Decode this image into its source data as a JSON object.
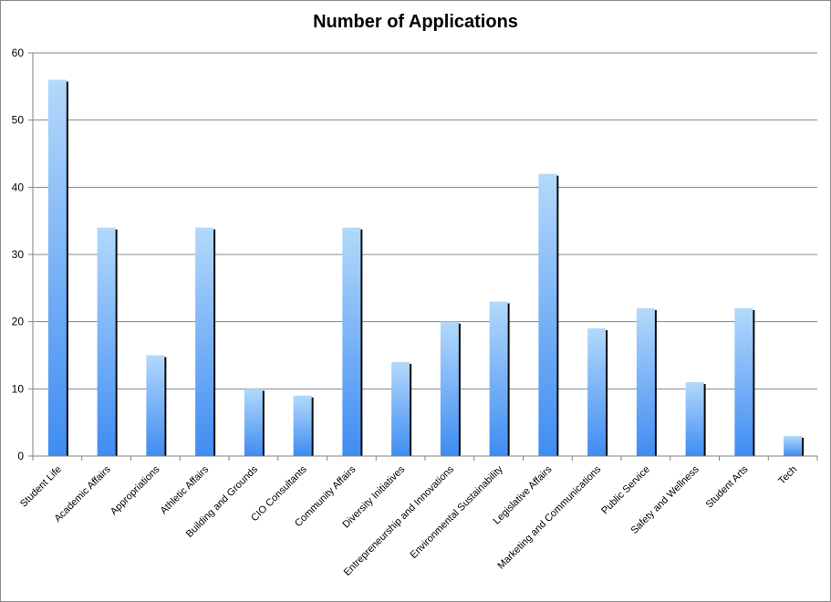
{
  "chart_data": {
    "type": "bar",
    "title": "Number of Applications",
    "xlabel": "",
    "ylabel": "",
    "ylim": [
      0,
      60
    ],
    "yticks": [
      0,
      10,
      20,
      30,
      40,
      50,
      60
    ],
    "grid": true,
    "legend": "none",
    "categories": [
      "Student Life",
      "Academic Affairs",
      "Appropriations",
      "Athletic Affairs",
      "Building and Grounds",
      "CIO Consultants",
      "Community Affairs",
      "Diversity Initiatives",
      "Entrepreneurship and Innovations",
      "Environmental Sustainability",
      "Legislative Affairs",
      "Marketing and Communications",
      "Public Service",
      "Safety and Wellness",
      "Student Arts",
      "Tech"
    ],
    "values": [
      56,
      34,
      15,
      34,
      10,
      9,
      34,
      14,
      20,
      23,
      42,
      19,
      22,
      11,
      22,
      3
    ],
    "colors": {
      "bar_top": "#b3d9fb",
      "bar_bottom": "#3f8cf2",
      "bar_shadow": "#0a0a0a",
      "gridline": "#7a8a96",
      "axis": "#808080"
    }
  }
}
